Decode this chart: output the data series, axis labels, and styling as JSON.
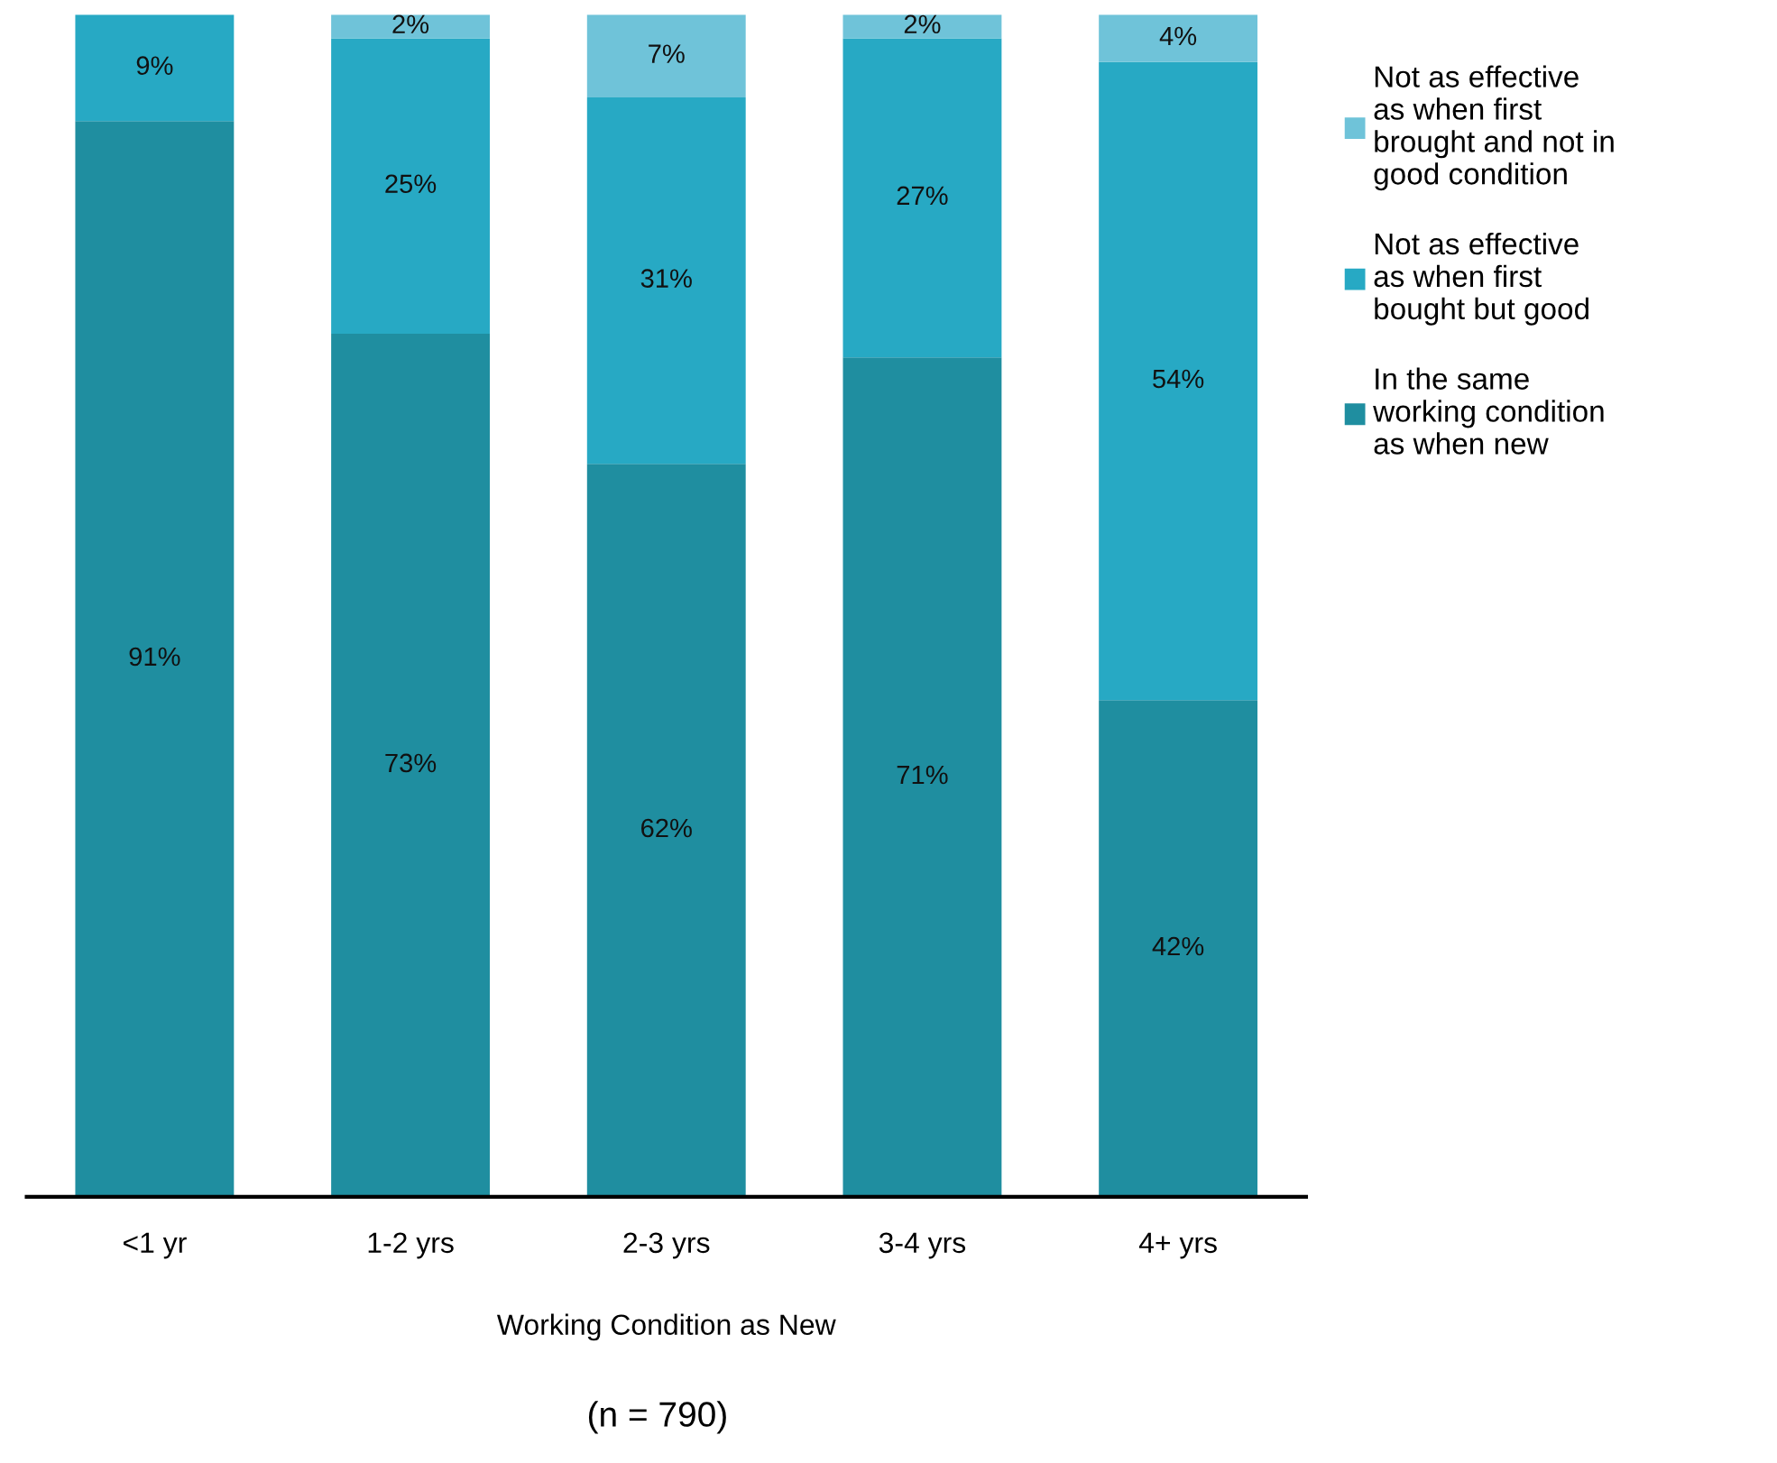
{
  "chart_data": {
    "type": "bar",
    "stacked": true,
    "xlabel": "Working Condition as New",
    "annotations": [
      "(n = 790)"
    ],
    "categories": [
      "<1 yr",
      "1-2 yrs",
      "2-3 yrs",
      "3-4 yrs",
      "4+ yrs"
    ],
    "series": [
      {
        "name": "In the same\nworking condition\nas when new",
        "color": "#1f8ea0",
        "values": [
          91,
          73,
          62,
          71,
          42
        ],
        "value_labels": [
          "91%",
          "73%",
          "62%",
          "71%",
          "42%"
        ]
      },
      {
        "name": "Not as effective\nas when first\nbought but good",
        "color": "#27a9c4",
        "values": [
          9,
          25,
          31,
          27,
          54
        ],
        "value_labels": [
          "9%",
          "25%",
          "31%",
          "27%",
          "54%"
        ]
      },
      {
        "name": "Not as effective\nas when first\nbrought and not in\ngood condition",
        "color": "#6fc3d9",
        "values": [
          null,
          2,
          7,
          2,
          4
        ],
        "value_labels": [
          null,
          "2%",
          "7%",
          "2%",
          "4%"
        ]
      }
    ],
    "legend": "right",
    "grid": false,
    "tick_labels": "x"
  }
}
